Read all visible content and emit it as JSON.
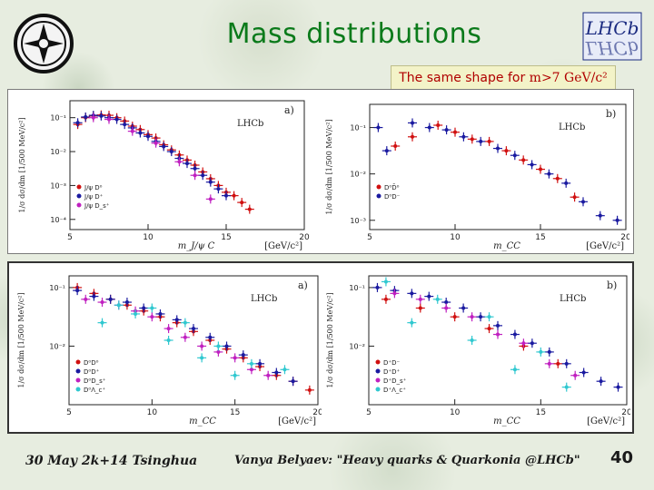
{
  "slide": {
    "title": "Mass distributions",
    "note_prefix": "The same shape for ",
    "note_physics": "m>7 GeV/c²",
    "footer_date": "30 May 2k+14 Tsinghua",
    "footer_author": "Vanya Belyaev: \"Heavy quarks & Quarkonia @LHCb\"",
    "page_number": "40",
    "logo_right_text": "LHCb"
  },
  "colors": {
    "title": "#0a7a1a",
    "note_text": "#b00000",
    "red": "#d01010",
    "blue": "#1a1aa0",
    "magenta": "#c020c0",
    "cyan": "#30c8d0"
  },
  "chart_data": [
    {
      "type": "scatter",
      "panel_label": "a)",
      "experiment": "LHCb",
      "xlabel": "m_J/ψ C",
      "xunit": "[GeV/c²]",
      "ylabel_top": "1/σ dσ/dm [1/500 MeV/c²]",
      "xlim": [
        5,
        20
      ],
      "xticks": [
        "5",
        "10",
        "15",
        "20"
      ],
      "yticks": [
        "10⁻¹",
        "10⁻²",
        "10⁻³",
        "10⁻⁴"
      ],
      "ylim_log": [
        -4.3,
        -0.5
      ],
      "legend": [
        "J/ψ D⁰",
        "J/ψ D⁺",
        "J/ψ D_s⁺"
      ],
      "series": [
        {
          "name": "J/ψ D⁰",
          "color": "#d01010",
          "points": [
            [
              5.5,
              -1.2
            ],
            [
              6,
              -1.0
            ],
            [
              6.5,
              -0.95
            ],
            [
              7,
              -0.92
            ],
            [
              7.5,
              -0.93
            ],
            [
              8,
              -1.0
            ],
            [
              8.5,
              -1.1
            ],
            [
              9,
              -1.25
            ],
            [
              9.5,
              -1.35
            ],
            [
              10,
              -1.5
            ],
            [
              10.5,
              -1.6
            ],
            [
              11,
              -1.8
            ],
            [
              11.5,
              -1.95
            ],
            [
              12,
              -2.1
            ],
            [
              12.5,
              -2.25
            ],
            [
              13,
              -2.4
            ],
            [
              13.5,
              -2.6
            ],
            [
              14,
              -2.8
            ],
            [
              14.5,
              -3.0
            ],
            [
              15,
              -3.2
            ],
            [
              15.5,
              -3.3
            ],
            [
              16,
              -3.5
            ],
            [
              16.5,
              -3.7
            ]
          ]
        },
        {
          "name": "J/ψ D⁺",
          "color": "#1a1aa0",
          "points": [
            [
              5.5,
              -1.15
            ],
            [
              6,
              -0.98
            ],
            [
              6.5,
              -0.93
            ],
            [
              7,
              -0.95
            ],
            [
              7.5,
              -1.0
            ],
            [
              8,
              -1.05
            ],
            [
              8.5,
              -1.2
            ],
            [
              9,
              -1.3
            ],
            [
              9.5,
              -1.45
            ],
            [
              10,
              -1.55
            ],
            [
              10.5,
              -1.7
            ],
            [
              11,
              -1.85
            ],
            [
              11.5,
              -2.0
            ],
            [
              12,
              -2.2
            ],
            [
              12.5,
              -2.35
            ],
            [
              13,
              -2.5
            ],
            [
              13.5,
              -2.7
            ],
            [
              14,
              -2.9
            ],
            [
              14.5,
              -3.1
            ],
            [
              15,
              -3.3
            ]
          ]
        },
        {
          "name": "J/ψ D_s⁺",
          "color": "#c020c0",
          "points": [
            [
              6.5,
              -1.0
            ],
            [
              7.5,
              -1.05
            ],
            [
              9,
              -1.4
            ],
            [
              10.5,
              -1.75
            ],
            [
              12,
              -2.3
            ],
            [
              13,
              -2.7
            ],
            [
              14,
              -3.4
            ]
          ]
        }
      ]
    },
    {
      "type": "scatter",
      "panel_label": "b)",
      "experiment": "LHCb",
      "xlabel": "m_CC",
      "xunit": "[GeV/c²]",
      "ylabel_top": "1/σ dσ/dm [1/500 MeV/c²]",
      "xlim": [
        5,
        20
      ],
      "xticks": [
        "5",
        "10",
        "15",
        "20"
      ],
      "yticks": [
        "10⁻¹",
        "10⁻²",
        "10⁻³"
      ],
      "ylim_log": [
        -3.2,
        -0.5
      ],
      "legend": [
        "D⁰D̄⁰",
        "D⁰D⁻"
      ],
      "series": [
        {
          "name": "D⁰D̄⁰",
          "color": "#d01010",
          "points": [
            [
              6.5,
              -1.4
            ],
            [
              7.5,
              -1.2
            ],
            [
              9,
              -0.95
            ],
            [
              10,
              -1.1
            ],
            [
              11,
              -1.25
            ],
            [
              12,
              -1.3
            ],
            [
              13,
              -1.5
            ],
            [
              14,
              -1.7
            ],
            [
              15,
              -1.9
            ],
            [
              16,
              -2.1
            ],
            [
              17,
              -2.5
            ]
          ]
        },
        {
          "name": "D⁰D⁻",
          "color": "#1a1aa0",
          "points": [
            [
              5.5,
              -1.0
            ],
            [
              6,
              -1.5
            ],
            [
              7.5,
              -0.9
            ],
            [
              8.5,
              -1.0
            ],
            [
              9.5,
              -1.05
            ],
            [
              10.5,
              -1.2
            ],
            [
              11.5,
              -1.3
            ],
            [
              12.5,
              -1.45
            ],
            [
              13.5,
              -1.6
            ],
            [
              14.5,
              -1.8
            ],
            [
              15.5,
              -2.0
            ],
            [
              16.5,
              -2.2
            ],
            [
              17.5,
              -2.6
            ],
            [
              18.5,
              -2.9
            ],
            [
              19.5,
              -3.0
            ]
          ]
        }
      ]
    },
    {
      "type": "scatter",
      "panel_label": "a)",
      "experiment": "LHCb",
      "xlabel": "m_CC",
      "xunit": "[GeV/c²]",
      "ylabel_top": "1/σ dσ/dm [1/500 MeV/c²]",
      "xlim": [
        5,
        20
      ],
      "xticks": [
        "5",
        "10",
        "15",
        "20"
      ],
      "yticks": [
        "10⁻¹",
        "10⁻²"
      ],
      "ylim_log": [
        -3.0,
        -0.8
      ],
      "legend": [
        "D⁰D⁰",
        "D⁰D⁺",
        "D⁰D_s⁺",
        "D⁰Λ_c⁺"
      ],
      "series": [
        {
          "name": "D⁰D⁰",
          "color": "#d01010",
          "points": [
            [
              5.5,
              -1.0
            ],
            [
              6.5,
              -1.1
            ],
            [
              7.5,
              -1.2
            ],
            [
              8.5,
              -1.3
            ],
            [
              9.5,
              -1.4
            ],
            [
              10.5,
              -1.5
            ],
            [
              11.5,
              -1.6
            ],
            [
              12.5,
              -1.75
            ],
            [
              13.5,
              -1.9
            ],
            [
              14.5,
              -2.05
            ],
            [
              15.5,
              -2.2
            ],
            [
              16.5,
              -2.35
            ],
            [
              17.5,
              -2.5
            ],
            [
              18.5,
              -2.6
            ],
            [
              19.5,
              -2.75
            ]
          ]
        },
        {
          "name": "D⁰D⁺",
          "color": "#1a1aa0",
          "points": [
            [
              5.5,
              -1.05
            ],
            [
              6.5,
              -1.15
            ],
            [
              7.5,
              -1.2
            ],
            [
              8.5,
              -1.25
            ],
            [
              9.5,
              -1.35
            ],
            [
              10.5,
              -1.45
            ],
            [
              11.5,
              -1.55
            ],
            [
              12.5,
              -1.7
            ],
            [
              13.5,
              -1.85
            ],
            [
              14.5,
              -2.0
            ],
            [
              15.5,
              -2.15
            ],
            [
              16.5,
              -2.3
            ],
            [
              17.5,
              -2.45
            ],
            [
              18.5,
              -2.6
            ]
          ]
        },
        {
          "name": "D⁰D_s⁺",
          "color": "#c020c0",
          "points": [
            [
              6,
              -1.2
            ],
            [
              7,
              -1.25
            ],
            [
              8,
              -1.3
            ],
            [
              9,
              -1.4
            ],
            [
              10,
              -1.5
            ],
            [
              11,
              -1.7
            ],
            [
              12,
              -1.85
            ],
            [
              13,
              -2.0
            ],
            [
              14,
              -2.1
            ],
            [
              15,
              -2.2
            ],
            [
              16,
              -2.4
            ],
            [
              17,
              -2.5
            ]
          ]
        },
        {
          "name": "D⁰Λ_c⁺",
          "color": "#30c8d0",
          "points": [
            [
              7,
              -1.6
            ],
            [
              8,
              -1.3
            ],
            [
              9,
              -1.45
            ],
            [
              10,
              -1.35
            ],
            [
              11,
              -1.9
            ],
            [
              12,
              -1.6
            ],
            [
              13,
              -2.2
            ],
            [
              14,
              -2.0
            ],
            [
              15,
              -2.5
            ],
            [
              16,
              -2.3
            ],
            [
              18,
              -2.4
            ]
          ]
        }
      ]
    },
    {
      "type": "scatter",
      "panel_label": "b)",
      "experiment": "LHCb",
      "xlabel": "m_CC",
      "xunit": "[GeV/c²]",
      "ylabel_top": "1/σ dσ/dm [1/500 MeV/c²]",
      "xlim": [
        5,
        20
      ],
      "xticks": [
        "5",
        "10",
        "15",
        "20"
      ],
      "yticks": [
        "10⁻¹",
        "10⁻²"
      ],
      "ylim_log": [
        -3.0,
        -0.8
      ],
      "legend": [
        "D⁺D⁻",
        "D⁺D⁺",
        "D⁺D_s⁺",
        "D⁺Λ_c⁺"
      ],
      "series": [
        {
          "name": "D⁺D⁻",
          "color": "#d01010",
          "points": [
            [
              6,
              -1.2
            ],
            [
              8,
              -1.35
            ],
            [
              10,
              -1.5
            ],
            [
              12,
              -1.7
            ],
            [
              14,
              -2.0
            ],
            [
              16,
              -2.3
            ]
          ]
        },
        {
          "name": "D⁺D⁺",
          "color": "#1a1aa0",
          "points": [
            [
              5.5,
              -1.0
            ],
            [
              6.5,
              -1.05
            ],
            [
              7.5,
              -1.1
            ],
            [
              8.5,
              -1.15
            ],
            [
              9.5,
              -1.25
            ],
            [
              10.5,
              -1.35
            ],
            [
              11.5,
              -1.5
            ],
            [
              12.5,
              -1.65
            ],
            [
              13.5,
              -1.8
            ],
            [
              14.5,
              -1.95
            ],
            [
              15.5,
              -2.1
            ],
            [
              16.5,
              -2.3
            ],
            [
              17.5,
              -2.45
            ],
            [
              18.5,
              -2.6
            ],
            [
              19.5,
              -2.7
            ]
          ]
        },
        {
          "name": "D⁺D_s⁺",
          "color": "#c020c0",
          "points": [
            [
              6.5,
              -1.1
            ],
            [
              8,
              -1.2
            ],
            [
              9.5,
              -1.35
            ],
            [
              11,
              -1.5
            ],
            [
              12.5,
              -1.8
            ],
            [
              14,
              -1.95
            ],
            [
              15.5,
              -2.3
            ],
            [
              17,
              -2.5
            ]
          ]
        },
        {
          "name": "D⁺Λ_c⁺",
          "color": "#30c8d0",
          "points": [
            [
              6,
              -0.9
            ],
            [
              7.5,
              -1.6
            ],
            [
              9,
              -1.2
            ],
            [
              11,
              -1.9
            ],
            [
              12,
              -1.5
            ],
            [
              13.5,
              -2.4
            ],
            [
              15,
              -2.1
            ],
            [
              16.5,
              -2.7
            ]
          ]
        }
      ]
    }
  ]
}
